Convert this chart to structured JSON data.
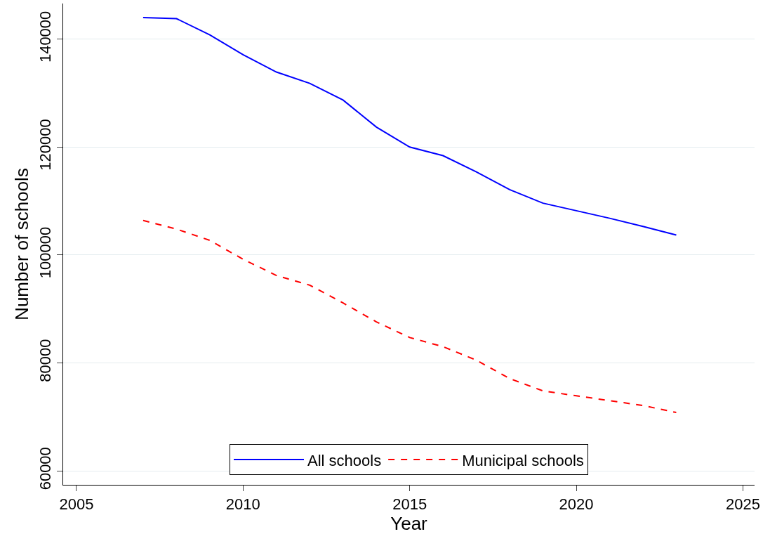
{
  "chart_data": {
    "type": "line",
    "xlabel": "Year",
    "ylabel": "Number of schools",
    "x": [
      2007,
      2008,
      2009,
      2010,
      2011,
      2012,
      2013,
      2014,
      2015,
      2016,
      2017,
      2018,
      2019,
      2020,
      2021,
      2022,
      2023
    ],
    "series": [
      {
        "name": "All schools",
        "color": "#0000ff",
        "line_style": "solid",
        "values": [
          144000,
          143800,
          140800,
          137100,
          133900,
          131800,
          128700,
          123700,
          120000,
          118400,
          115400,
          112100,
          109600,
          108200,
          106800,
          105300,
          103700
        ]
      },
      {
        "name": "Municipal schools",
        "color": "#ff0000",
        "line_style": "dashed",
        "values": [
          106400,
          104800,
          102700,
          99200,
          96200,
          94400,
          91100,
          87600,
          84700,
          83000,
          80500,
          77100,
          74800,
          73900,
          73000,
          72100,
          70800
        ]
      }
    ],
    "xlim": [
      2004.6,
      2025.35
    ],
    "xticks": [
      2005,
      2010,
      2015,
      2020,
      2025
    ],
    "ylim": [
      57400,
      146600
    ],
    "yticks": [
      60000,
      80000,
      100000,
      120000,
      140000
    ],
    "grid": "y",
    "legend": "bottom",
    "marker": "none"
  }
}
